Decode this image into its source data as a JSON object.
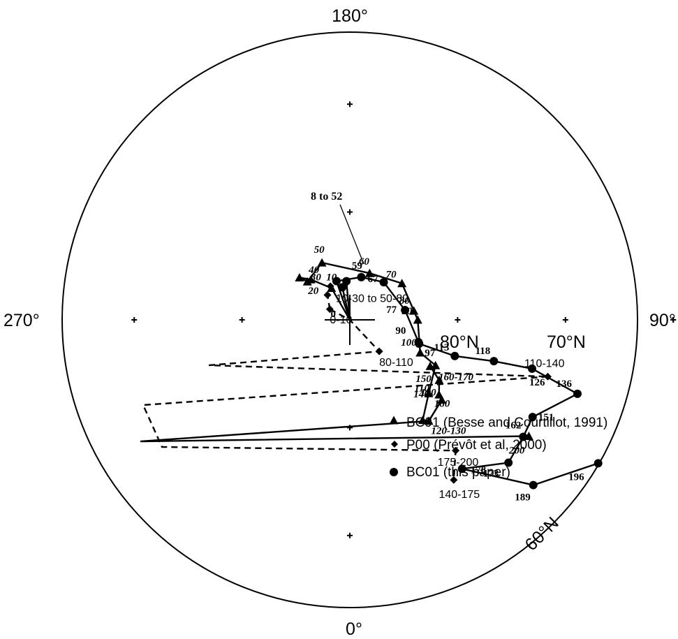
{
  "chart_data": {
    "type": "scatter",
    "projection": "polar equal-area (pole plot)",
    "azimuth_labels": {
      "top": "180°",
      "right": "90°",
      "bottom": "0°",
      "left": "270°"
    },
    "colatitude_labels": [
      "80°N",
      "70°N",
      "60°N"
    ],
    "annotation": "8 to 52",
    "legend": {
      "placement": "lower-right",
      "entries": [
        {
          "marker": "triangle",
          "label": "BC91 (Besse and Courtillot, 1991)"
        },
        {
          "marker": "diamond",
          "label": "P00 (Prévôt et al, 2000)"
        },
        {
          "marker": "circle",
          "label": "BC01 (this paper)"
        }
      ]
    },
    "series": [
      {
        "name": "BC01 (this paper)",
        "marker": "circle",
        "style": "solid",
        "points": [
          {
            "label": "0",
            "lat": 90.0,
            "lon": 0
          },
          {
            "label": "",
            "lat": 86.4,
            "lon": 175
          },
          {
            "label": "",
            "lat": 86.9,
            "lon": 167
          },
          {
            "label": "",
            "lat": 86.2,
            "lon": 161
          },
          {
            "label": "59",
            "lat": 85.9,
            "lon": 195
          },
          {
            "label": "67",
            "lat": 85.3,
            "lon": 222
          },
          {
            "label": "77",
            "lat": 84.8,
            "lon": 260
          },
          {
            "label": "90",
            "lat": 83.3,
            "lon": 288
          },
          {
            "label": "97",
            "lat": 83.2,
            "lon": 289
          },
          {
            "label": "113",
            "lat": 79.7,
            "lon": 289
          },
          {
            "label": "118",
            "lat": 76.1,
            "lon": 286
          },
          {
            "label": "126",
            "lat": 72.5,
            "lon": 285
          },
          {
            "label": "136",
            "lat": 67.8,
            "lon": 288
          },
          {
            "label": "151",
            "lat": 70.8,
            "lon": 298
          },
          {
            "label": "162",
            "lat": 70.6,
            "lon": 304
          },
          {
            "label": "173",
            "lat": 70.2,
            "lon": 312
          },
          {
            "label": "178",
            "lat": 72.7,
            "lon": 323
          },
          {
            "label": "189",
            "lat": 67.1,
            "lon": 312
          },
          {
            "label": "196",
            "lat": 63.4,
            "lon": 300
          }
        ]
      },
      {
        "name": "BC91 (Besse and Courtillot, 1991)",
        "marker": "triangle",
        "style": "solid",
        "points": [
          {
            "label": "0",
            "lat": 90.0,
            "lon": 0
          },
          {
            "label": "10",
            "lat": 86.6,
            "lon": 150
          },
          {
            "label": "20",
            "lat": 84.8,
            "lon": 136
          },
          {
            "label": "30",
            "lat": 83.9,
            "lon": 130
          },
          {
            "label": "40",
            "lat": 84.7,
            "lon": 132
          },
          {
            "label": "50",
            "lat": 84.1,
            "lon": 154
          },
          {
            "label": "60",
            "lat": 85.3,
            "lon": 203
          },
          {
            "label": "70",
            "lat": 84.1,
            "lon": 235
          },
          {
            "label": "80",
            "lat": 84.0,
            "lon": 262
          },
          {
            "label": "90",
            "lat": 83.7,
            "lon": 270
          },
          {
            "label": "100",
            "lat": 82.8,
            "lon": 295
          },
          {
            "label": "150",
            "lat": 81.0,
            "lon": 298
          },
          {
            "label": "180",
            "lat": 80.0,
            "lon": 313
          },
          {
            "label": "120-130",
            "lat": 78.5,
            "lon": 324
          },
          {
            "label": "",
            "lat": 78.1,
            "lon": 322
          },
          {
            "label": "190",
            "lat": 78.7,
            "lon": 311
          },
          {
            "label": "140",
            "lat": 79.2,
            "lon": 310
          },
          {
            "label": "110",
            "lat": 80.0,
            "lon": 304
          },
          {
            "label": "160-170",
            "lat": 81.4,
            "lon": 300
          },
          {
            "label": "200",
            "lat": 70.2,
            "lon": 303
          }
        ]
      },
      {
        "name": "P00 (Prévôt et al, 2000)",
        "marker": "diamond",
        "style": "dashed",
        "points": [
          {
            "label": "0-10",
            "lat": 87.9,
            "lon": 118
          },
          {
            "label": "10-30 to 50-80",
            "lat": 86.9,
            "lon": 138
          },
          {
            "label": "",
            "lat": 86.4,
            "lon": 150
          },
          {
            "label": "80-110",
            "lat": 86.0,
            "lon": 317
          },
          {
            "label": "110-140",
            "lat": 70.9,
            "lon": 286
          },
          {
            "label": "175-200",
            "lat": 74.4,
            "lon": 321
          },
          {
            "label": "140-175",
            "lat": 72.3,
            "lon": 327
          }
        ]
      }
    ]
  }
}
